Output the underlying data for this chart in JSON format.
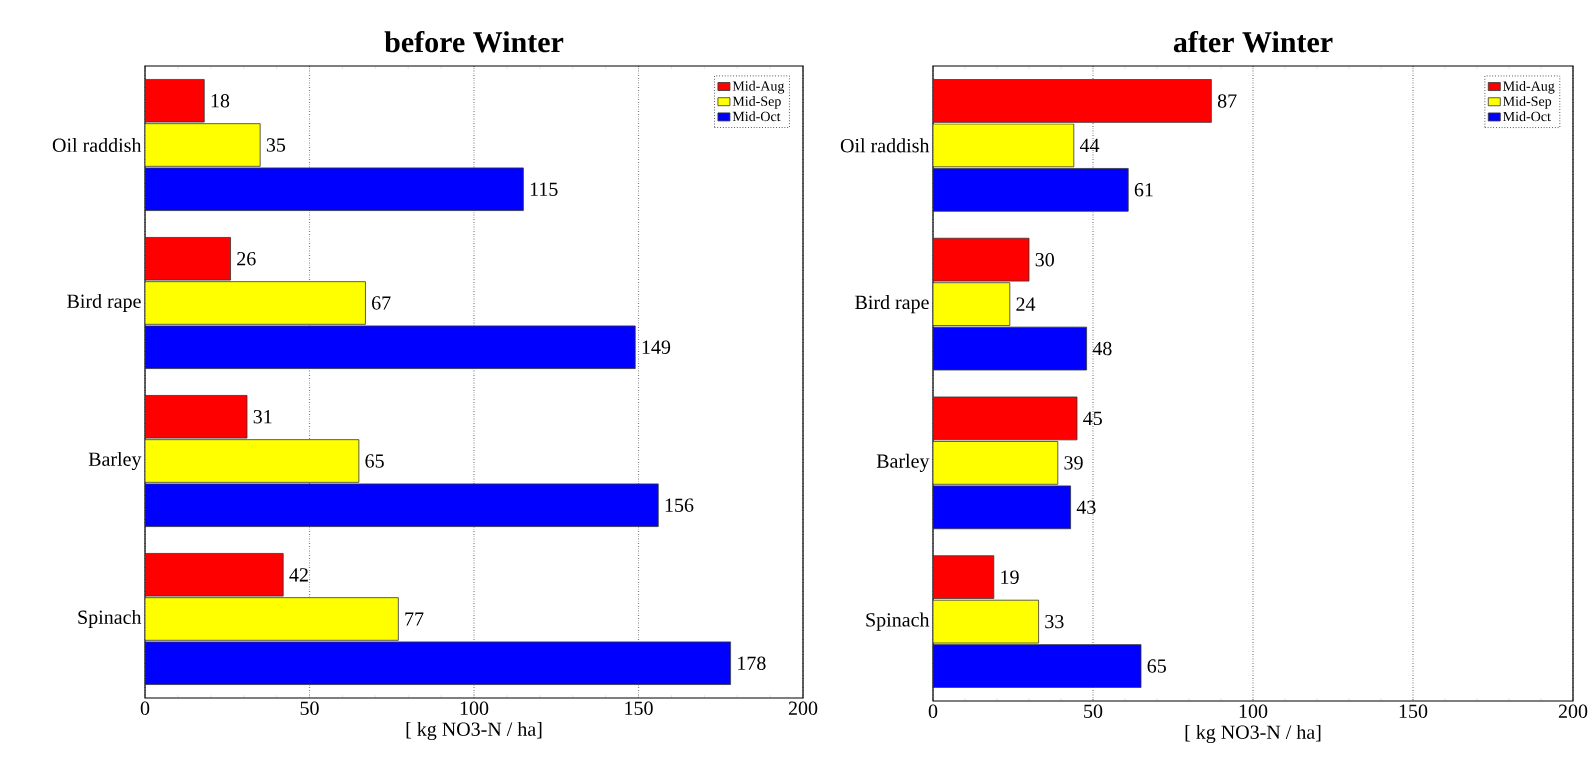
{
  "chart_data": [
    {
      "type": "bar",
      "orientation": "horizontal",
      "title": "before Winter",
      "xlabel": "[ kg NO3-N / ha]",
      "categories": [
        "Oil raddish",
        "Bird rape",
        "Barley",
        "Spinach"
      ],
      "series": [
        {
          "name": "Mid-Aug",
          "color": "#ff0000",
          "values": [
            18,
            26,
            31,
            42
          ]
        },
        {
          "name": "Mid-Sep",
          "color": "#ffff00",
          "values": [
            35,
            67,
            65,
            77
          ]
        },
        {
          "name": "Mid-Oct",
          "color": "#0000ff",
          "values": [
            115,
            149,
            156,
            178
          ]
        }
      ],
      "xlim": [
        0,
        200
      ],
      "xticks": [
        0,
        50,
        100,
        150,
        200
      ],
      "grid": "x",
      "legend": "top right",
      "data_labels": true
    },
    {
      "type": "bar",
      "orientation": "horizontal",
      "title": "after Winter",
      "xlabel": "[ kg NO3-N / ha]",
      "categories": [
        "Oil raddish",
        "Bird rape",
        "Barley",
        "Spinach"
      ],
      "series": [
        {
          "name": "Mid-Aug",
          "color": "#ff0000",
          "values": [
            87,
            30,
            45,
            19
          ]
        },
        {
          "name": "Mid-Sep",
          "color": "#ffff00",
          "values": [
            44,
            24,
            39,
            33
          ]
        },
        {
          "name": "Mid-Oct",
          "color": "#0000ff",
          "values": [
            61,
            48,
            43,
            65
          ]
        }
      ],
      "xlim": [
        0,
        200
      ],
      "xticks": [
        0,
        50,
        100,
        150,
        200
      ],
      "grid": "x",
      "legend": "top right",
      "data_labels": true
    }
  ]
}
